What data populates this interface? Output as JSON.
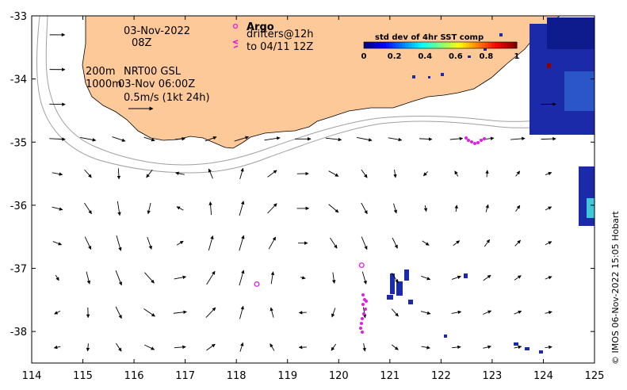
{
  "map": {
    "date_line": "03-Nov-2022",
    "time_line": "08Z",
    "argo_label": "Argo",
    "drifters_line1": "drifters@12h",
    "drifters_line2": "to 04/11 12Z",
    "depth_200": "200m",
    "depth_1000": "1000m",
    "product": "NRT00 GSL",
    "product_time": "03-Nov 06:00Z",
    "scale_label": "0.5m/s (1kt 24h)",
    "credit": "© IMOS 06-Nov-2022 15:05 Hobart",
    "colors": {
      "land": "#fdc998",
      "argo": "#e11ee1",
      "isobath": "#a0a0a0",
      "arrow": "#000000"
    }
  },
  "colorbar": {
    "title": "std dev of 4hr SST comp",
    "ticks": [
      "0",
      "0.2",
      "0.4",
      "0.6",
      "0.8",
      "1"
    ],
    "range": [
      0,
      1
    ],
    "colormap": "jet"
  },
  "axes": {
    "x_ticks": [
      "114",
      "115",
      "116",
      "117",
      "118",
      "119",
      "120",
      "121",
      "122",
      "123",
      "124",
      "125"
    ],
    "y_ticks": [
      "-33",
      "-34",
      "-35",
      "-36",
      "-37",
      "-38"
    ],
    "xlim": [
      114,
      125
    ],
    "ylim": [
      -38.5,
      -33
    ]
  },
  "argo_floats": [
    {
      "lon": 118.4,
      "lat": -37.25
    },
    {
      "lon": 120.45,
      "lat": -36.95
    }
  ]
}
